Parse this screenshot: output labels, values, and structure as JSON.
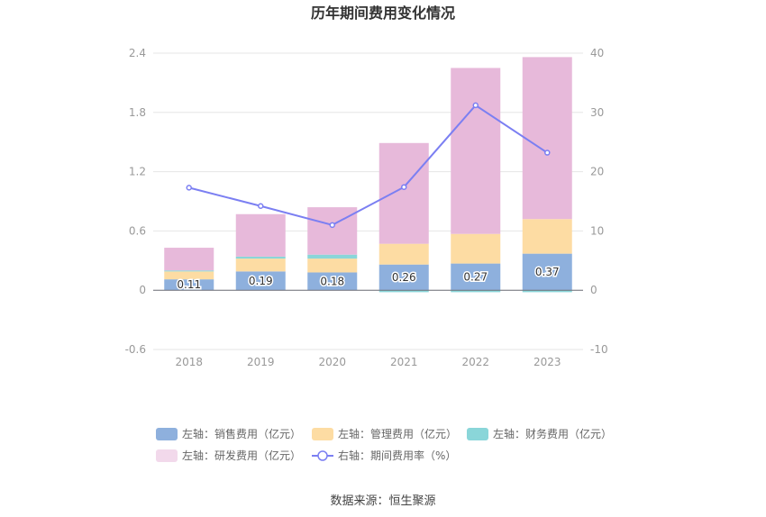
{
  "chart_data": {
    "type": "bar",
    "title": "历年期间费用变化情况",
    "categories": [
      "2018",
      "2019",
      "2020",
      "2021",
      "2022",
      "2023"
    ],
    "left_axis": {
      "ylim": [
        -0.6,
        2.4
      ],
      "ticks": [
        "-0.6",
        "0",
        "0.6",
        "1.2",
        "1.8",
        "2.4"
      ]
    },
    "right_axis": {
      "ylim": [
        -10,
        40
      ],
      "ticks": [
        "-10",
        "0",
        "10",
        "20",
        "30",
        "40"
      ]
    },
    "grid": true,
    "legend_position": "bottom",
    "series": [
      {
        "name": "左轴：销售费用（亿元）",
        "axis": "left",
        "type": "bar",
        "color": "#8eb0dd",
        "values": [
          0.11,
          0.19,
          0.18,
          0.26,
          0.27,
          0.37
        ],
        "labels": [
          "0.11",
          "0.19",
          "0.18",
          "0.26",
          "0.27",
          "0.37"
        ]
      },
      {
        "name": "左轴：管理费用（亿元）",
        "axis": "left",
        "type": "bar",
        "color": "#fddca3",
        "values": [
          0.08,
          0.13,
          0.14,
          0.21,
          0.3,
          0.35
        ]
      },
      {
        "name": "左轴：财务费用（亿元）",
        "axis": "left",
        "type": "bar",
        "color": "#8ad6d9",
        "values": [
          0.01,
          0.02,
          0.04,
          -0.02,
          -0.02,
          -0.02
        ]
      },
      {
        "name": "左轴：研发费用（亿元）",
        "axis": "left",
        "type": "bar",
        "color": "#e7b9da",
        "values": [
          0.23,
          0.43,
          0.48,
          1.02,
          1.68,
          1.64
        ]
      },
      {
        "name": "右轴：期间费用率（%）",
        "axis": "right",
        "type": "line",
        "color": "#7b7ff2",
        "values": [
          17.3,
          14.2,
          11.0,
          17.4,
          31.2,
          23.2
        ]
      }
    ]
  },
  "source_text": "数据来源：恒生聚源"
}
